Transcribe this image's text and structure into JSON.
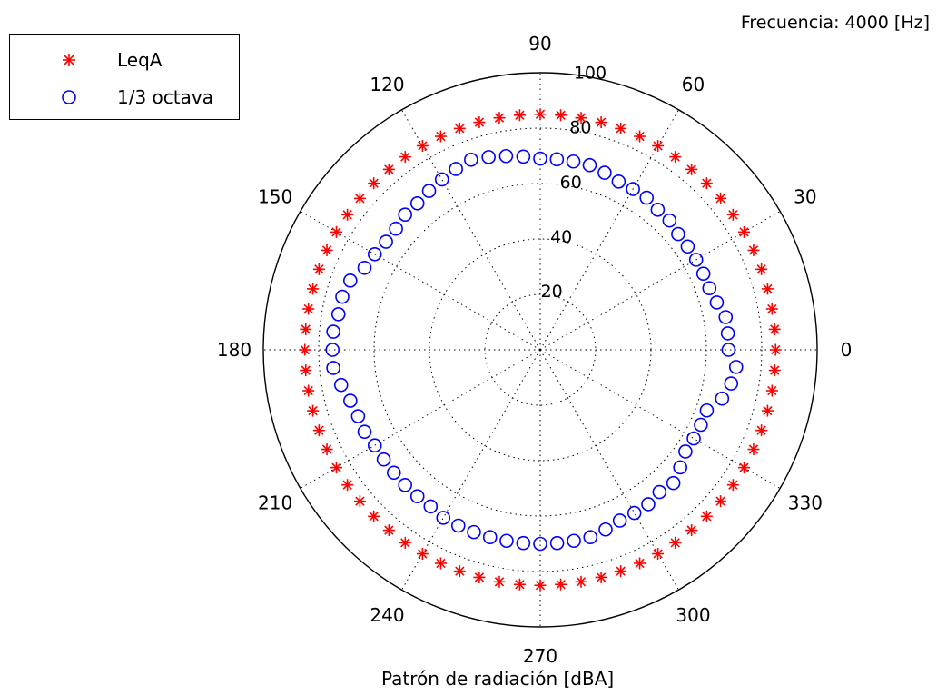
{
  "annotation": "Frecuencia: 4000 [Hz]",
  "chart_data": {
    "type": "scatter",
    "projection": "polar",
    "title": "",
    "xlabel": "Patrón de radiación [dBA]",
    "angle_unit": "degrees",
    "angle_ticks": [
      0,
      30,
      60,
      90,
      120,
      150,
      180,
      210,
      240,
      270,
      300,
      330
    ],
    "angle_tick_labels": [
      "0",
      "30",
      "60",
      "90",
      "120",
      "150",
      "180",
      "210",
      "240",
      "270",
      "300",
      "330"
    ],
    "r_ticks": [
      20,
      40,
      60,
      80,
      100
    ],
    "r_tick_labels": [
      "20",
      "40",
      "60",
      "80",
      "100"
    ],
    "rlim": [
      0,
      100
    ],
    "grid": true,
    "legend_position": "top-left",
    "series": [
      {
        "name": "LeqA",
        "marker": "asterisk",
        "color": "#ff0000",
        "theta": [
          0,
          5,
          10,
          15,
          20,
          25,
          30,
          35,
          40,
          45,
          50,
          55,
          60,
          65,
          70,
          75,
          80,
          85,
          90,
          95,
          100,
          105,
          110,
          115,
          120,
          125,
          130,
          135,
          140,
          145,
          150,
          155,
          160,
          165,
          170,
          175,
          180,
          185,
          190,
          195,
          200,
          205,
          210,
          215,
          220,
          225,
          230,
          235,
          240,
          245,
          250,
          255,
          260,
          265,
          270,
          275,
          280,
          285,
          290,
          295,
          300,
          305,
          310,
          315,
          320,
          325,
          330,
          335,
          340,
          345,
          350,
          355
        ],
        "r": [
          85,
          85,
          85,
          85,
          85,
          85,
          85,
          85,
          85,
          85,
          85,
          85,
          85,
          85,
          85,
          85,
          85,
          85,
          85,
          85,
          85,
          85,
          85,
          85,
          85,
          85,
          85,
          85,
          85,
          85,
          85,
          85,
          85,
          85,
          85,
          85,
          85,
          85,
          85,
          85,
          85,
          85,
          85,
          85,
          85,
          85,
          85,
          85,
          85,
          85,
          85,
          85,
          85,
          85,
          85,
          85,
          85,
          85,
          85,
          85,
          85,
          85,
          85,
          85,
          85,
          85,
          85,
          85,
          85,
          85,
          85,
          85
        ]
      },
      {
        "name": "1/3 octava",
        "marker": "circle",
        "color": "#0000ff",
        "theta": [
          0,
          5,
          10,
          15,
          20,
          25,
          30,
          35,
          40,
          45,
          50,
          55,
          60,
          65,
          70,
          75,
          80,
          85,
          90,
          95,
          100,
          105,
          110,
          115,
          120,
          125,
          130,
          135,
          140,
          145,
          150,
          155,
          160,
          165,
          170,
          175,
          180,
          185,
          190,
          195,
          200,
          205,
          210,
          215,
          220,
          225,
          230,
          235,
          240,
          245,
          250,
          255,
          260,
          265,
          270,
          275,
          280,
          285,
          290,
          295,
          300,
          305,
          310,
          315,
          320,
          325,
          330,
          335,
          340,
          345,
          350,
          355
        ],
        "r": [
          68,
          68,
          68,
          66,
          65,
          65,
          65,
          65,
          65,
          66,
          66,
          67,
          67,
          67,
          68,
          69,
          69,
          69,
          69,
          70,
          71,
          72,
          73,
          72,
          71,
          70,
          69,
          69,
          68,
          68,
          69,
          70,
          73,
          74,
          74,
          75,
          75,
          75,
          73,
          71,
          70,
          70,
          69,
          69,
          69,
          69,
          69,
          69,
          70,
          70,
          70,
          70,
          70,
          70,
          70,
          70,
          70,
          70,
          69,
          68,
          68,
          68,
          67,
          68,
          66,
          64,
          64,
          64,
          64,
          68,
          70,
          71
        ]
      }
    ]
  }
}
